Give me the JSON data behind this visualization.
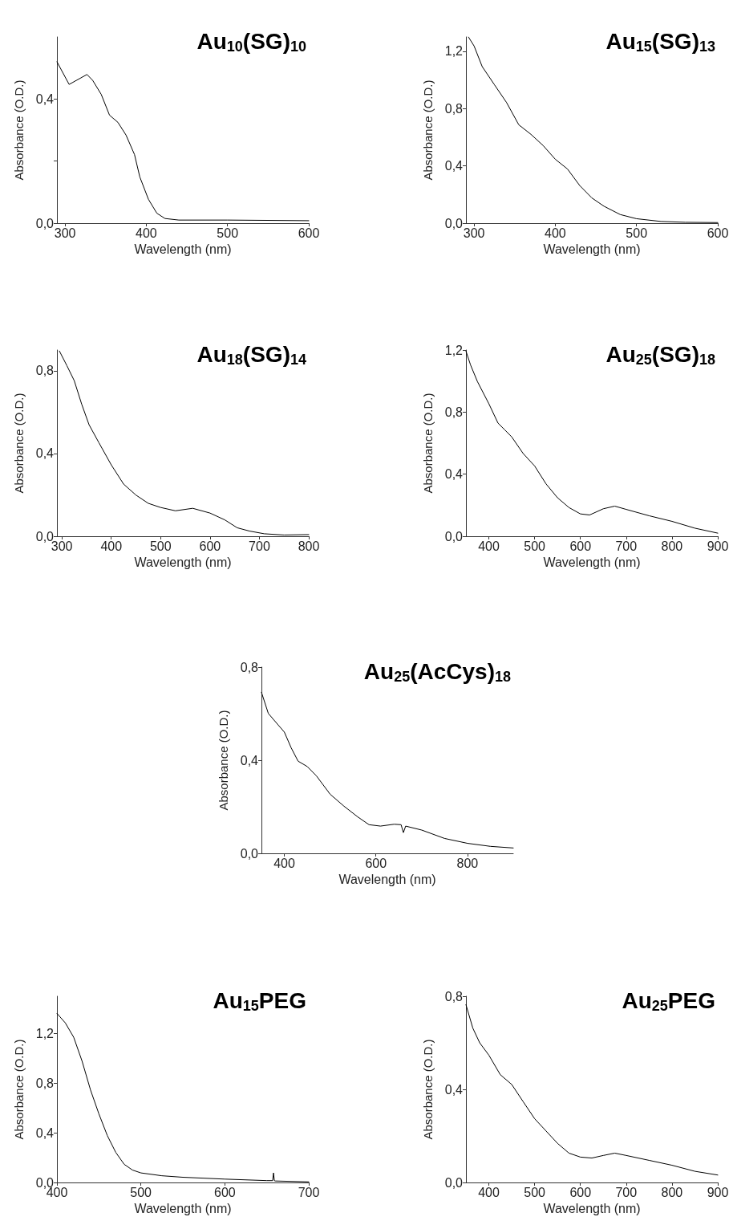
{
  "chart_data": [
    {
      "type": "line",
      "title": "Au$_{10}$(SG)$_{10}$",
      "xlabel": "Wavelength (nm)",
      "ylabel": "Absorbance (O.D.)",
      "color": "#000000",
      "marker": "none",
      "line_style": "solid",
      "xlim": [
        290,
        600
      ],
      "ylim": [
        0,
        0.6
      ],
      "xticks": [
        300,
        400,
        500,
        600
      ],
      "yticks": [
        {
          "value": 0,
          "label": "0,0"
        },
        {
          "value": 0.2,
          "label": null
        },
        {
          "value": 0.4,
          "label": "0,4"
        }
      ],
      "x": [
        290,
        305,
        327,
        334,
        344.5,
        354.7,
        365,
        375,
        385.5,
        392,
        402.6,
        413,
        423,
        440,
        500,
        600
      ],
      "values": [
        0.52,
        0.447,
        0.479,
        0.46,
        0.415,
        0.348,
        0.325,
        0.284,
        0.221,
        0.149,
        0.077,
        0.032,
        0.015,
        0.01,
        0.01,
        0.008
      ]
    },
    {
      "type": "line",
      "title": "Au$_{15}$(SG)$_{13}$",
      "xlabel": "Wavelength (nm)",
      "ylabel": "Absorbance (O.D.)",
      "color": "#000000",
      "marker": "none",
      "line_style": "solid",
      "xlim": [
        290,
        600
      ],
      "ylim": [
        0,
        1.3
      ],
      "xticks": [
        300,
        400,
        500,
        600
      ],
      "yticks": [
        {
          "value": 0,
          "label": "0,0"
        },
        {
          "value": 0.4,
          "label": "0,4"
        },
        {
          "value": 0.8,
          "label": "0,8"
        },
        {
          "value": 1.2,
          "label": "1,2"
        }
      ],
      "x": [
        293,
        300,
        310,
        325,
        340,
        355,
        370,
        385,
        400,
        415,
        430,
        445,
        460,
        480,
        500,
        530,
        560,
        600
      ],
      "values": [
        1.3,
        1.237,
        1.093,
        0.967,
        0.842,
        0.687,
        0.62,
        0.542,
        0.446,
        0.378,
        0.263,
        0.176,
        0.118,
        0.06,
        0.031,
        0.012,
        0.006,
        0.004
      ]
    },
    {
      "type": "line",
      "title": "Au$_{18}$(SG)$_{14}$",
      "xlabel": "Wavelength (nm)",
      "ylabel": "Absorbance (O.D.)",
      "color": "#000000",
      "marker": "none",
      "line_style": "solid",
      "xlim": [
        290,
        800
      ],
      "ylim": [
        0,
        0.9
      ],
      "xticks": [
        300,
        400,
        500,
        600,
        700,
        800
      ],
      "yticks": [
        {
          "value": 0,
          "label": "0,0"
        },
        {
          "value": 0.4,
          "label": "0,4"
        },
        {
          "value": 0.8,
          "label": "0,8"
        }
      ],
      "x": [
        295,
        310,
        325,
        340,
        355,
        375,
        400,
        425,
        450,
        475,
        500,
        530,
        565,
        600,
        630,
        655,
        680,
        710,
        750,
        800
      ],
      "values": [
        0.895,
        0.825,
        0.752,
        0.639,
        0.539,
        0.452,
        0.345,
        0.252,
        0.199,
        0.159,
        0.139,
        0.123,
        0.135,
        0.112,
        0.079,
        0.041,
        0.025,
        0.012,
        0.006,
        0.008
      ]
    },
    {
      "type": "line",
      "title": "Au$_{25}$(SG)$_{18}$",
      "xlabel": "Wavelength (nm)",
      "ylabel": "Absorbance (O.D.)",
      "color": "#000000",
      "marker": "none",
      "line_style": "solid",
      "xlim": [
        350,
        900
      ],
      "ylim": [
        0,
        1.2
      ],
      "xticks": [
        400,
        500,
        600,
        700,
        800,
        900
      ],
      "yticks": [
        {
          "value": 0,
          "label": "0,0"
        },
        {
          "value": 0.4,
          "label": "0,4"
        },
        {
          "value": 0.8,
          "label": "0,8"
        },
        {
          "value": 1.2,
          "label": "1,2"
        }
      ],
      "x": [
        350,
        360,
        375,
        400,
        420,
        435,
        450,
        475,
        500,
        525,
        550,
        575,
        600,
        620,
        650,
        675,
        700,
        750,
        800,
        850,
        900
      ],
      "values": [
        1.193,
        1.104,
        0.997,
        0.854,
        0.729,
        0.685,
        0.64,
        0.533,
        0.453,
        0.337,
        0.248,
        0.185,
        0.144,
        0.137,
        0.177,
        0.194,
        0.173,
        0.132,
        0.096,
        0.052,
        0.02
      ]
    },
    {
      "type": "line",
      "title": "Au$_{25}$(AcCys)$_{18}$",
      "xlabel": "Wavelength (nm)",
      "ylabel": "Absorbance (O.D.)",
      "color": "#000000",
      "marker": "none",
      "line_style": "solid",
      "xlim": [
        350,
        900
      ],
      "ylim": [
        0,
        0.8
      ],
      "xticks": [
        400,
        600,
        800
      ],
      "yticks": [
        {
          "value": 0,
          "label": "0,0"
        },
        {
          "value": 0.4,
          "label": "0,4"
        },
        {
          "value": 0.8,
          "label": "0,8"
        }
      ],
      "x": [
        350,
        365,
        385,
        400,
        415,
        430,
        450,
        470,
        500,
        530,
        560,
        585,
        610,
        640,
        655,
        660,
        665,
        700,
        750,
        800,
        850,
        900
      ],
      "values": [
        0.692,
        0.601,
        0.555,
        0.521,
        0.453,
        0.396,
        0.373,
        0.333,
        0.254,
        0.203,
        0.157,
        0.123,
        0.117,
        0.125,
        0.123,
        0.089,
        0.117,
        0.1,
        0.064,
        0.043,
        0.03,
        0.023
      ]
    },
    {
      "type": "line",
      "title": "Au$_{15}$PEG",
      "xlabel": "Wavelength (nm)",
      "ylabel": "Absorbance (O.D.)",
      "color": "#000000",
      "marker": "none",
      "line_style": "solid",
      "xlim": [
        400,
        700
      ],
      "ylim": [
        0,
        1.5
      ],
      "xticks": [
        400,
        500,
        600,
        700
      ],
      "yticks": [
        {
          "value": 0,
          "label": "0,0"
        },
        {
          "value": 0.4,
          "label": "0,4"
        },
        {
          "value": 0.8,
          "label": "0,8"
        },
        {
          "value": 1.2,
          "label": "1,2"
        }
      ],
      "x": [
        400,
        410,
        420,
        430,
        440,
        450,
        460,
        470,
        480,
        490,
        500,
        525,
        550,
        600,
        650,
        657,
        658,
        659,
        660,
        700
      ],
      "values": [
        1.362,
        1.285,
        1.169,
        0.976,
        0.745,
        0.552,
        0.378,
        0.243,
        0.147,
        0.1,
        0.077,
        0.054,
        0.042,
        0.027,
        0.015,
        0.015,
        0.077,
        0.015,
        0.012,
        0.005
      ]
    },
    {
      "type": "line",
      "title": "Au$_{25}$PEG",
      "xlabel": "Wavelength (nm)",
      "ylabel": "Absorbance (O.D.)",
      "color": "#000000",
      "marker": "none",
      "line_style": "solid",
      "xlim": [
        350,
        900
      ],
      "ylim": [
        0,
        0.8
      ],
      "xticks": [
        400,
        500,
        600,
        700,
        800,
        900
      ],
      "yticks": [
        {
          "value": 0,
          "label": "0,0"
        },
        {
          "value": 0.4,
          "label": "0,4"
        },
        {
          "value": 0.8,
          "label": "0,8"
        }
      ],
      "x": [
        350,
        365,
        380,
        400,
        425,
        450,
        475,
        500,
        525,
        550,
        575,
        600,
        625,
        650,
        675,
        700,
        750,
        800,
        850,
        900
      ],
      "values": [
        0.764,
        0.663,
        0.6,
        0.547,
        0.463,
        0.421,
        0.347,
        0.274,
        0.221,
        0.168,
        0.126,
        0.109,
        0.105,
        0.116,
        0.126,
        0.116,
        0.095,
        0.074,
        0.048,
        0.032
      ]
    }
  ]
}
